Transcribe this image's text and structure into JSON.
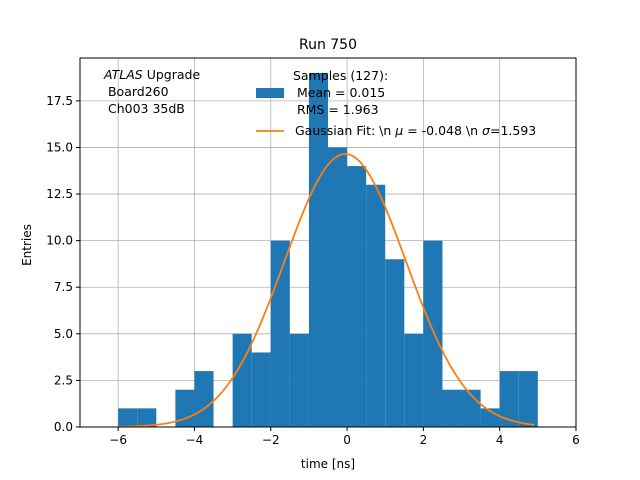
{
  "chart_data": {
    "type": "bar",
    "title": "Run 750",
    "xlabel": "time [ns]",
    "ylabel": "Entries",
    "xlim": [
      -7,
      6
    ],
    "ylim": [
      0,
      19.8
    ],
    "grid": true,
    "x_ticks": [
      -6,
      -4,
      -2,
      0,
      2,
      4,
      6
    ],
    "x_tick_labels": [
      "−6",
      "−4",
      "−2",
      "0",
      "2",
      "4",
      "6"
    ],
    "y_ticks": [
      0.0,
      2.5,
      5.0,
      7.5,
      10.0,
      12.5,
      15.0,
      17.5
    ],
    "y_tick_labels": [
      "0.0",
      "2.5",
      "5.0",
      "7.5",
      "10.0",
      "12.5",
      "15.0",
      "17.5"
    ],
    "histogram": {
      "name": "Samples (127):",
      "color": "#1f77b4",
      "bin_edges": [
        -6.0,
        -5.5,
        -5.0,
        -4.5,
        -4.0,
        -3.5,
        -3.0,
        -2.5,
        -2.0,
        -1.5,
        -1.0,
        -0.5,
        0.0,
        0.5,
        1.0,
        1.5,
        2.0,
        2.5,
        3.0,
        3.5,
        4.0,
        4.5,
        5.0
      ],
      "counts": [
        1,
        1,
        0,
        2,
        3,
        0,
        5,
        4,
        10,
        5,
        19,
        15,
        14,
        13,
        9,
        5,
        10,
        2,
        2,
        1,
        3,
        3
      ]
    },
    "fit": {
      "name": "Gaussian Fit",
      "color": "#ff7f0e",
      "mu": -0.048,
      "sigma": 1.593,
      "amplitude": 14.65,
      "x_range": [
        -6.0,
        4.9
      ]
    },
    "legend": {
      "position": "top-center",
      "hist_label_lines": [
        "Samples (127):",
        " Mean = 0.015",
        " RMS = 1.963"
      ],
      "fit_label": "Gaussian Fit: \\n $\\mu$ = -0.048 \\n $\\sigma$=1.593"
    },
    "annotation": {
      "position": "top-left",
      "italic_part": "ATLAS",
      "first_line_rest": " Upgrade",
      "lines": [
        " Board260",
        " Ch003 35dB"
      ]
    }
  }
}
